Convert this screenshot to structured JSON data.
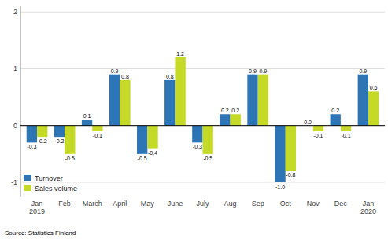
{
  "chart_data": {
    "type": "bar",
    "categories": [
      "Jan\n2019",
      "Feb",
      "March",
      "April",
      "May",
      "June",
      "July",
      "Aug",
      "Sep",
      "Oct",
      "Nov",
      "Dec",
      "Jan\n2020"
    ],
    "series": [
      {
        "name": "Turnover",
        "color": "#2E75B6",
        "values": [
          -0.3,
          -0.2,
          0.1,
          0.9,
          -0.5,
          0.8,
          -0.3,
          0.2,
          0.9,
          -1.0,
          0.0,
          0.2,
          0.9
        ],
        "value_labels": [
          "-0.3",
          "-0.2",
          "0.1",
          "0.9",
          "-0.5",
          "0.8",
          "-0.3",
          "0.2",
          "0.9",
          "-1.0",
          "0.0",
          "0.2",
          "0.9"
        ]
      },
      {
        "name": "Sales volume",
        "color": "#C5D927",
        "values": [
          -0.2,
          -0.5,
          -0.1,
          0.8,
          -0.4,
          1.2,
          -0.5,
          0.2,
          0.9,
          -0.8,
          -0.1,
          -0.1,
          0.6
        ]
      }
    ],
    "ylim": [
      -1.25,
      2.1
    ],
    "yticks": [
      -1,
      0,
      1,
      2
    ],
    "grid": true,
    "legend": "lower left",
    "data_labels": true,
    "annotations": [
      "Source: Statistics Finland"
    ]
  }
}
